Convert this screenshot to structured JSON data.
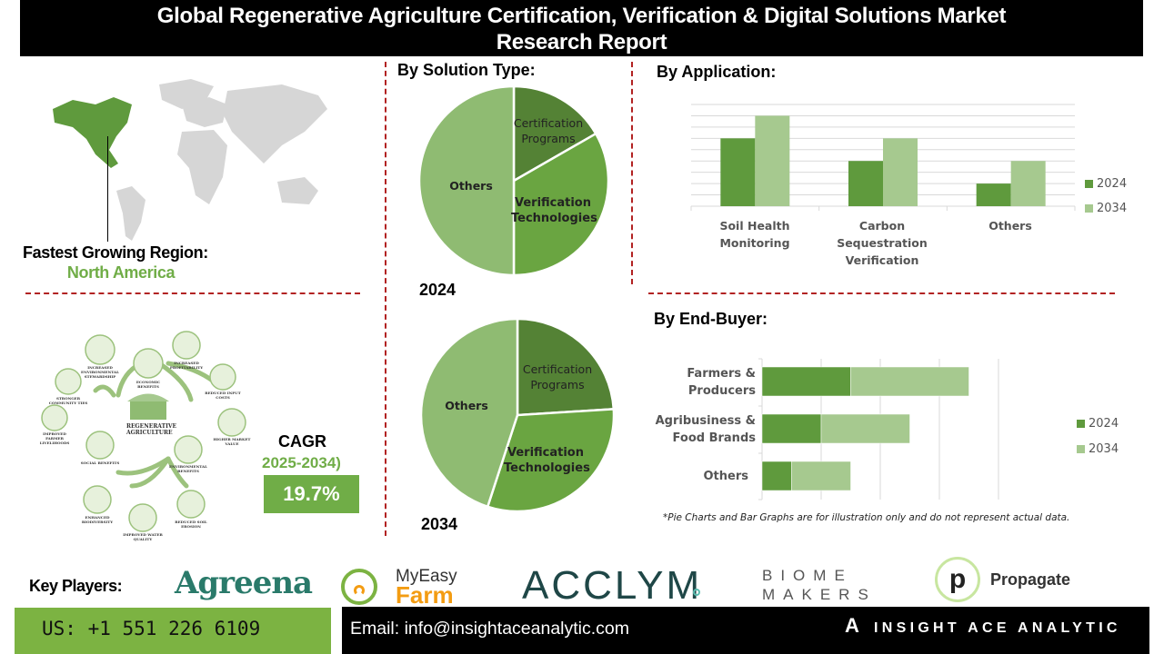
{
  "title_line1": "Global Regenerative Agriculture Certification, Verification & Digital Solutions Market",
  "title_line2": "Research Report",
  "region": {
    "label": "Fastest Growing Region:",
    "value": "North America",
    "highlight_color": "#70ad47"
  },
  "illustration": {
    "center": "REGENERATIVE AGRICULTURE",
    "labels": [
      "INCREASED ENVIRONMENTAL STEWARDSHIP",
      "ECONOMIC BENEFITS",
      "INCREASED PROFITABILITY",
      "REDUCED INPUT COSTS",
      "HIGHER MARKET VALUE",
      "ENVIRONMENTAL BENEFITS",
      "REDUCED SOIL EROSION",
      "IMPROVED WATER QUALITY",
      "ENHANCED BIODIVERSITY",
      "SOCIAL BENEFITS",
      "IMPROVED FARMER LIVELIHOODS",
      "STRONGER COMMUNITY TIES"
    ]
  },
  "cagr": {
    "label": "CAGR",
    "period": "2025-2034)",
    "value": "19.7%"
  },
  "colors": {
    "dark_green": "#5f9a3d",
    "light_green": "#a6c98f",
    "pie_cert": "#548235",
    "pie_verif": "#6aa541",
    "pie_others": "#8fbb72",
    "divider": "#b22222"
  },
  "chart_data": [
    {
      "type": "pie",
      "section_title": "By Solution Type:",
      "year_label": "2024",
      "slices": [
        {
          "label": "Certification Programs",
          "value": 16.7
        },
        {
          "label": "Verification Technologies",
          "value": 33.3
        },
        {
          "label": "Others",
          "value": 50
        }
      ]
    },
    {
      "type": "pie",
      "year_label": "2034",
      "slices": [
        {
          "label": "Certification Programs",
          "value": 24
        },
        {
          "label": "Verification Technologies",
          "value": 31
        },
        {
          "label": "Others",
          "value": 45
        }
      ]
    },
    {
      "type": "bar",
      "section_title": "By Application:",
      "categories": [
        "Soil Health Monitoring",
        "Carbon Sequestration Verification",
        "Others"
      ],
      "series": [
        {
          "name": "2024",
          "values": [
            6,
            4,
            2
          ]
        },
        {
          "name": "2034",
          "values": [
            8,
            6,
            4
          ]
        }
      ],
      "ylim": [
        0,
        9
      ],
      "grid": true,
      "legend": "right"
    },
    {
      "type": "bar",
      "orientation": "horizontal-stacked",
      "section_title": "By End-Buyer:",
      "categories": [
        "Farmers & Producers",
        "Agribusiness & Food Brands",
        "Others"
      ],
      "series": [
        {
          "name": "2024",
          "values": [
            1.5,
            1.0,
            0.5
          ]
        },
        {
          "name": "2034",
          "values": [
            2.0,
            1.5,
            1.0
          ]
        }
      ],
      "xlim": [
        0,
        4
      ],
      "grid": true,
      "legend": "right"
    }
  ],
  "note": "*Pie Charts and Bar Graphs are for illustration only and do not represent actual data.",
  "key_players": {
    "label": "Key Players:",
    "logos": [
      "Agreena",
      "MyEasy",
      "Farm",
      "ACCLYM",
      "BIOME",
      "MAKERS",
      "Propagate"
    ]
  },
  "footer": {
    "phone": "US: +1 551 226 6109",
    "email": "Email: info@insightaceanalytic.com",
    "brand": "INSIGHT ACE ANALYTIC"
  }
}
